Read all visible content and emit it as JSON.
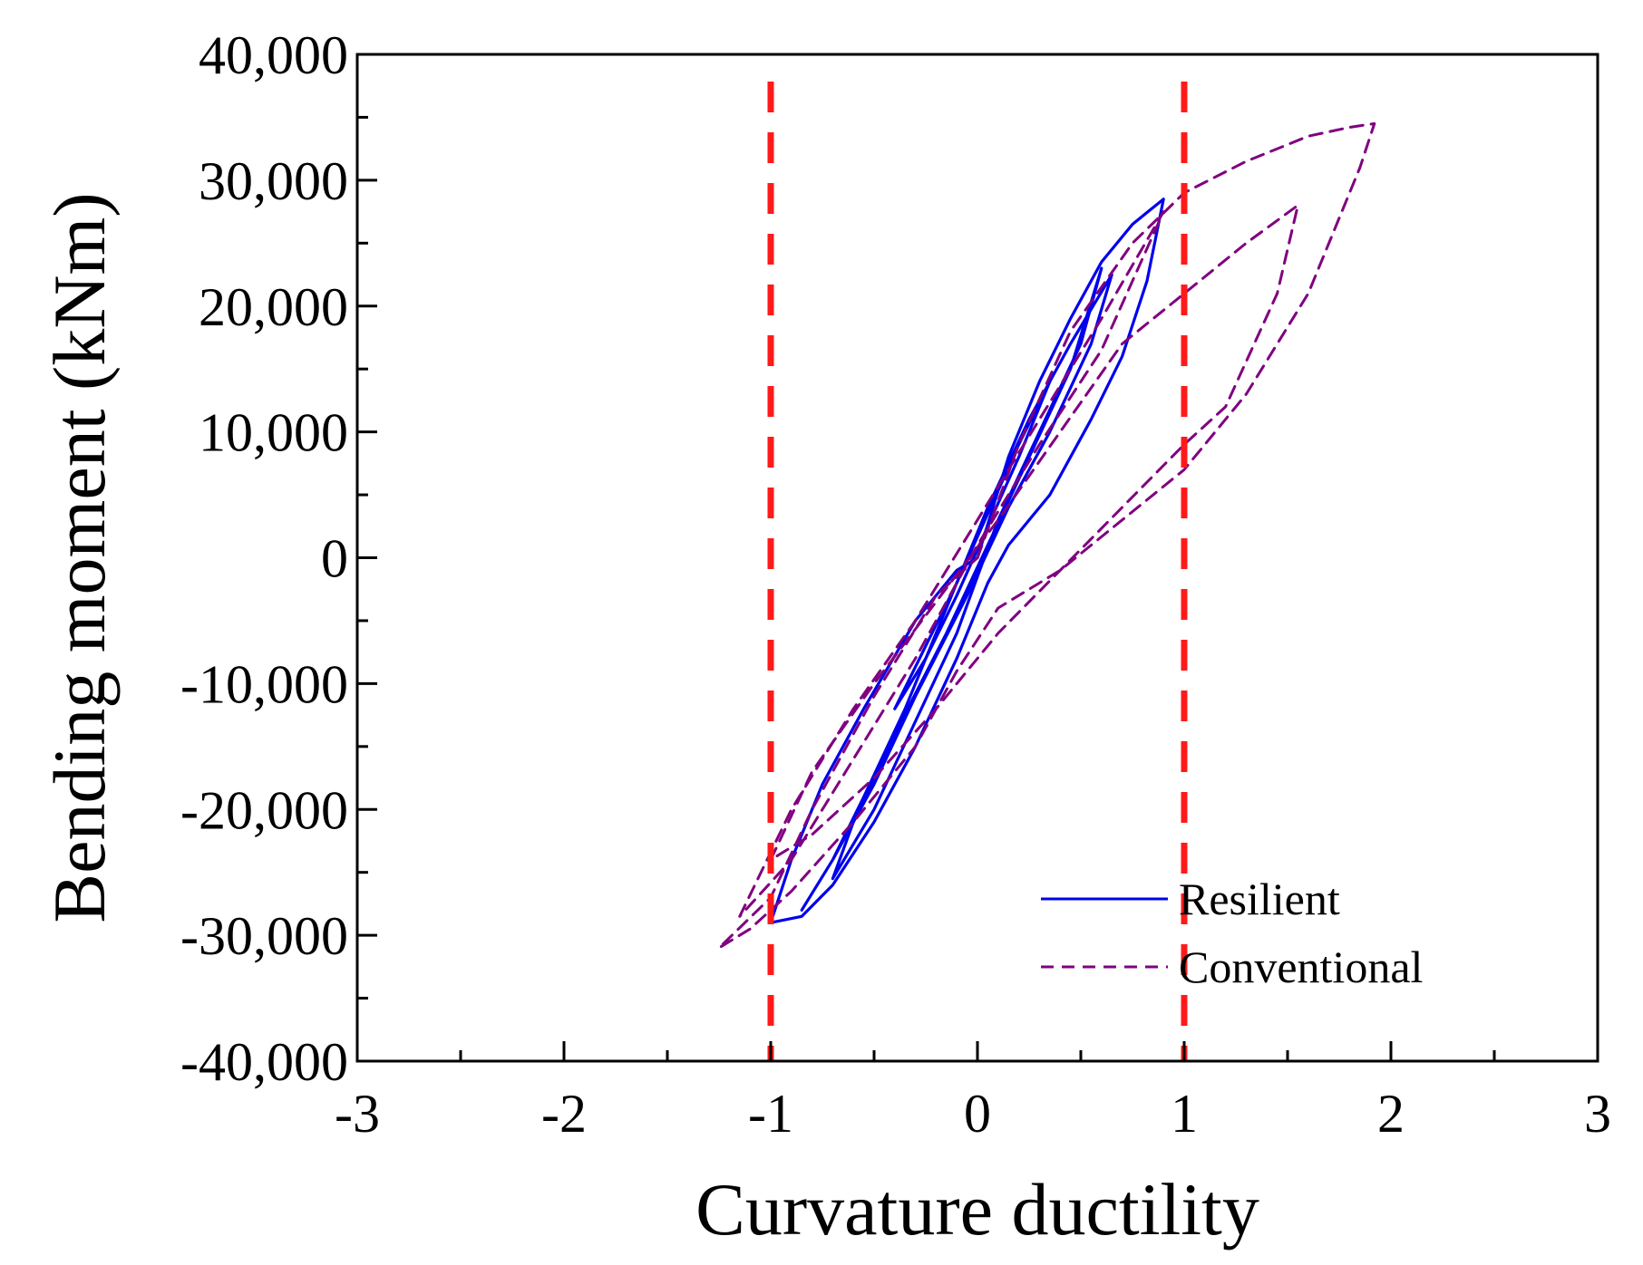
{
  "chart_data": {
    "type": "line",
    "title": "",
    "xlabel": "Curvature ductility",
    "ylabel": "Bending moment (kNm)",
    "xlim": [
      -3,
      3
    ],
    "ylim": [
      -40000,
      40000
    ],
    "x_ticks": [
      -3,
      -2,
      -1,
      0,
      1,
      2,
      3
    ],
    "x_tick_labels": [
      "-3",
      "-2",
      "-1",
      "0",
      "1",
      "2",
      "3"
    ],
    "y_ticks": [
      -40000,
      -30000,
      -20000,
      -10000,
      0,
      10000,
      20000,
      30000,
      40000
    ],
    "y_tick_labels": [
      "-40,000",
      "-30,000",
      "-20,000",
      "-10,000",
      "0",
      "10,000",
      "20,000",
      "30,000",
      "40,000"
    ],
    "grid": false,
    "legend_position": "bottom-right",
    "reference_lines": [
      {
        "orientation": "vertical",
        "x": -1,
        "color": "#ff1a1a",
        "style": "dashed"
      },
      {
        "orientation": "vertical",
        "x": 1,
        "color": "#ff1a1a",
        "style": "dashed"
      }
    ],
    "series": [
      {
        "name": "Resilient",
        "color": "#0000ee",
        "style": "solid",
        "segments": [
          {
            "x": [
              0.0,
              0.15,
              0.3,
              0.45,
              0.6,
              0.75,
              0.9,
              0.82,
              0.7,
              0.55,
              0.35,
              0.15,
              0.05,
              -0.1,
              -0.3,
              -0.5,
              -0.7,
              -0.85,
              -1.0,
              -0.9,
              -0.75,
              -0.55,
              -0.3,
              -0.1,
              0.0
            ],
            "y": [
              0,
              8000,
              14000,
              19000,
              23500,
              26500,
              28500,
              22000,
              16000,
              11000,
              5000,
              1000,
              -2000,
              -8000,
              -15000,
              -21000,
              -26000,
              -28500,
              -29000,
              -24000,
              -18000,
              -12000,
              -5000,
              -1000,
              0
            ]
          },
          {
            "x": [
              -0.85,
              -0.7,
              -0.55,
              -0.35,
              -0.15,
              0.05,
              0.25,
              0.45,
              0.65,
              0.55,
              0.35,
              0.15,
              -0.05,
              -0.3,
              -0.5,
              -0.7,
              -0.85
            ],
            "y": [
              -28000,
              -24000,
              -19000,
              -12000,
              -4000,
              4000,
              11000,
              17000,
              22500,
              17000,
              10000,
              4000,
              -3000,
              -11000,
              -18000,
              -24000,
              -28000
            ]
          },
          {
            "x": [
              -0.7,
              -0.5,
              -0.3,
              -0.1,
              0.1,
              0.3,
              0.5,
              0.6,
              0.45,
              0.25,
              0.05,
              -0.15,
              -0.4,
              -0.6,
              -0.7
            ],
            "y": [
              -25500,
              -20000,
              -13000,
              -6000,
              3000,
              10000,
              17000,
              23000,
              15000,
              8000,
              1000,
              -6000,
              -14000,
              -21000,
              -25500
            ]
          },
          {
            "x": [
              -0.4,
              -0.25,
              -0.1,
              0.05,
              0.2,
              0.35,
              0.2,
              0.05,
              -0.1,
              -0.25,
              -0.4
            ],
            "y": [
              -12000,
              -7000,
              -2000,
              3500,
              9000,
              14000,
              8000,
              2500,
              -3000,
              -8000,
              -12000
            ]
          }
        ]
      },
      {
        "name": "Conventional",
        "color": "#800080",
        "style": "dashed",
        "segments": [
          {
            "x": [
              0.0,
              0.2,
              0.45,
              0.75,
              1.0,
              1.3,
              1.6,
              1.8,
              1.92,
              1.85,
              1.6,
              1.3,
              1.0,
              0.7,
              0.4,
              0.1,
              -0.1,
              -0.3,
              -0.6,
              -0.9,
              -1.1,
              -1.25,
              -1.0,
              -0.8,
              -0.5,
              -0.2,
              0.0
            ],
            "y": [
              0,
              9000,
              18000,
              25000,
              29000,
              31500,
              33500,
              34200,
              34500,
              31000,
              21000,
              13000,
              7000,
              3000,
              -1000,
              -4000,
              -9000,
              -15000,
              -21000,
              -26500,
              -29500,
              -31000,
              -27000,
              -20000,
              -11000,
              -3000,
              0
            ]
          },
          {
            "x": [
              -1.0,
              -0.8,
              -0.5,
              -0.2,
              0.1,
              0.4,
              0.7,
              1.0,
              1.3,
              1.55,
              1.45,
              1.2,
              1.0,
              0.7,
              0.4,
              0.1,
              -0.2,
              -0.5,
              -0.8,
              -1.0
            ],
            "y": [
              -24000,
              -17000,
              -10000,
              -3500,
              3000,
              10000,
              17000,
              21000,
              25000,
              28000,
              21000,
              12000,
              9000,
              4000,
              -1000,
              -6000,
              -12000,
              -17500,
              -22000,
              -24000
            ]
          },
          {
            "x": [
              -1.15,
              -0.9,
              -0.6,
              -0.3,
              0.0,
              0.3,
              0.6,
              0.9,
              0.6,
              0.3,
              0.0,
              -0.3,
              -0.6,
              -0.9,
              -1.15
            ],
            "y": [
              -28500,
              -20000,
              -12000,
              -5000,
              3000,
              11000,
              19000,
              27500,
              16500,
              9000,
              1000,
              -8000,
              -16000,
              -24000,
              -28500
            ]
          }
        ]
      }
    ]
  }
}
